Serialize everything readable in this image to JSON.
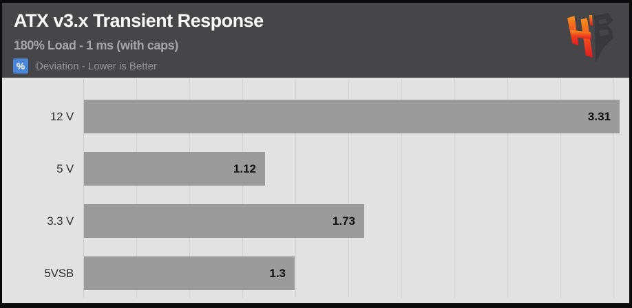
{
  "header": {
    "title": "ATX v3.x Transient Response",
    "subtitle": "180% Load - 1 ms (with caps)",
    "unit_badge": "%",
    "note": "Deviation - Lower is Better",
    "badge_color": "#4a86d8"
  },
  "logo": {
    "letters": "HB",
    "h_gradient_top": "#f8921c",
    "h_gradient_bottom": "#e01b20",
    "b_color": "#39393b"
  },
  "chart_data": {
    "type": "bar",
    "orientation": "horizontal",
    "title": "ATX v3.x Transient Response",
    "subtitle": "180% Load - 1 ms (with caps)",
    "xlabel": "",
    "ylabel": "",
    "unit": "%",
    "categories": [
      "12 V",
      "5 V",
      "3.3 V",
      "5VSB"
    ],
    "values": [
      3.31,
      1.12,
      1.73,
      1.3
    ],
    "value_labels": [
      "3.31",
      "1.12",
      "1.73",
      "1.3"
    ],
    "xlim": [
      0,
      3.37
    ],
    "grid": true,
    "legend": false,
    "bar_color": "#9b9b9b",
    "plot_background": "#e2e2e2",
    "header_background": "#464649"
  }
}
